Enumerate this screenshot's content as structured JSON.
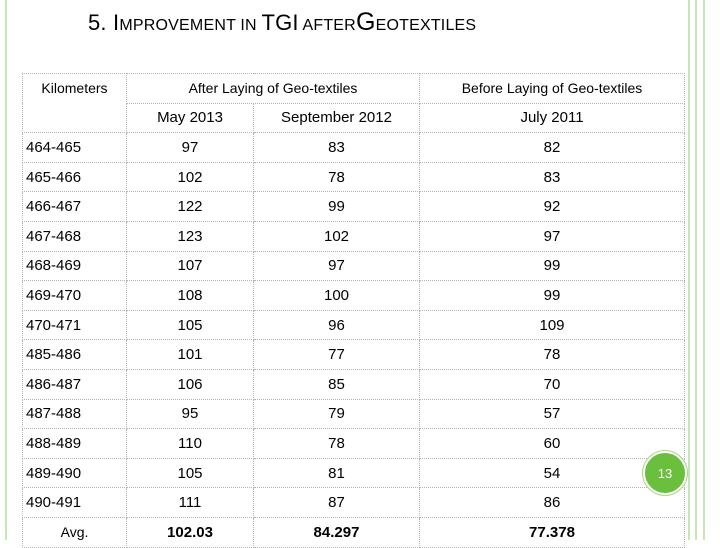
{
  "title": {
    "prefix": "5. I",
    "improvement": "MPROVEMENT IN ",
    "tgi": "TGI",
    "after": " AFTER",
    "g": "G",
    "eotextiles": "EOTEXTILES"
  },
  "table": {
    "km_header": "Kilometers",
    "after_header": "After Laying of Geo-textiles",
    "before_header": "Before Laying of Geo-textiles",
    "dates": [
      "May 2013",
      "September 2012",
      "July 2011"
    ],
    "rows": [
      [
        "464-465",
        "97",
        "83",
        "82"
      ],
      [
        "465-466",
        "102",
        "78",
        "83"
      ],
      [
        "466-467",
        "122",
        "99",
        "92"
      ],
      [
        "467-468",
        "123",
        "102",
        "97"
      ],
      [
        "468-469",
        "107",
        "97",
        "99"
      ],
      [
        "469-470",
        "108",
        "100",
        "99"
      ],
      [
        "470-471",
        "105",
        "96",
        "109"
      ],
      [
        "485-486",
        "101",
        "77",
        "78"
      ],
      [
        "486-487",
        "106",
        "85",
        "70"
      ],
      [
        "487-488",
        "95",
        "79",
        "57"
      ],
      [
        "488-489",
        "110",
        "78",
        "60"
      ],
      [
        "489-490",
        "105",
        "81",
        "54"
      ],
      [
        "490-491",
        "111",
        "87",
        "86"
      ]
    ],
    "avg": [
      "Avg.",
      "102.03",
      "84.297",
      "77.378"
    ]
  },
  "page_number": "13",
  "colors": {
    "frame": "#c9e6b8",
    "badge": "#6abf3c"
  }
}
